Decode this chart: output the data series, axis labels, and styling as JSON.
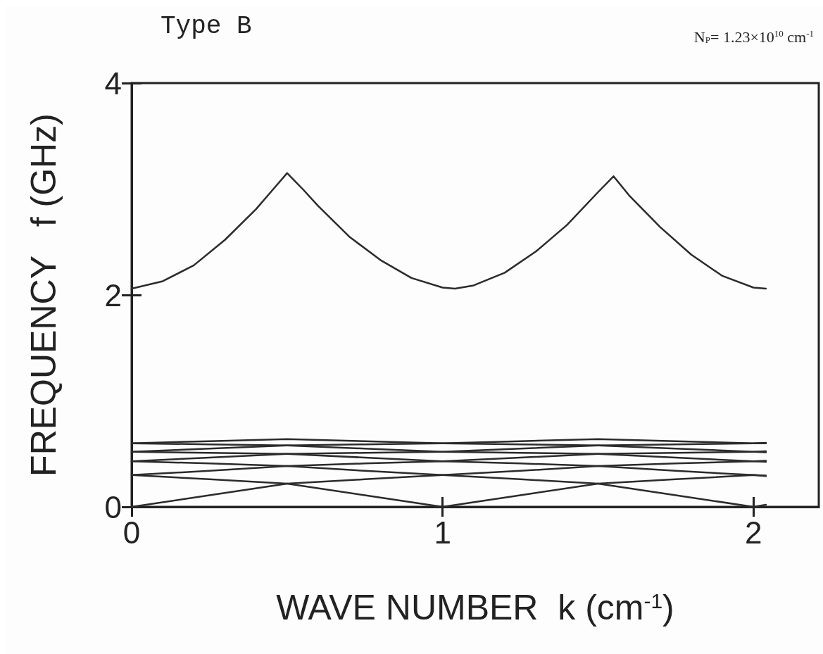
{
  "chart_data": {
    "type": "line",
    "title": "Type B",
    "subtitle": "N$_{P}$= 1.23×10$^{10}$ cm$^{-1}$",
    "xlabel": "WAVE NUMBER  k (cm$^{-1}$)",
    "ylabel": "FREQUENCY   f (GHz)",
    "x": [
      0,
      0.25,
      0.5,
      0.75,
      1,
      1.25,
      1.5,
      1.75,
      2,
      2.04
    ],
    "series": [
      {
        "color": "#2b2b2b",
        "x": [
          0,
          0.1,
          0.2,
          0.3,
          0.4,
          0.45,
          0.5,
          0.55,
          0.6,
          0.7,
          0.8,
          0.9,
          1.0,
          1.04,
          1.1,
          1.2,
          1.3,
          1.4,
          1.5,
          1.55,
          1.6,
          1.7,
          1.8,
          1.9,
          2.0,
          2.04
        ],
        "values": [
          2.06,
          2.13,
          2.28,
          2.52,
          2.81,
          2.98,
          3.15,
          3.0,
          2.84,
          2.55,
          2.33,
          2.16,
          2.07,
          2.06,
          2.09,
          2.21,
          2.41,
          2.66,
          2.97,
          3.12,
          2.94,
          2.64,
          2.38,
          2.18,
          2.07,
          2.06
        ]
      },
      {
        "color": "#2b2b2b",
        "values": [
          0,
          0.11,
          0.22,
          0.26,
          0.3,
          0.34,
          0.385,
          0.41,
          0.43,
          0.435
        ]
      },
      {
        "color": "#2b2b2b",
        "values": [
          0.3,
          0.26,
          0.22,
          0.11,
          0,
          0.11,
          0.22,
          0.26,
          0.3,
          0.29
        ]
      },
      {
        "color": "#2b2b2b",
        "values": [
          0.3,
          0.34,
          0.385,
          0.41,
          0.43,
          0.465,
          0.5,
          0.51,
          0.52,
          0.525
        ]
      },
      {
        "color": "#2b2b2b",
        "values": [
          0.43,
          0.41,
          0.385,
          0.34,
          0.3,
          0.26,
          0.22,
          0.11,
          0,
          0.02
        ]
      },
      {
        "color": "#2b2b2b",
        "values": [
          0.43,
          0.465,
          0.5,
          0.51,
          0.52,
          0.55,
          0.58,
          0.59,
          0.6,
          0.605
        ]
      },
      {
        "color": "#2b2b2b",
        "values": [
          0.52,
          0.51,
          0.5,
          0.465,
          0.43,
          0.41,
          0.385,
          0.34,
          0.3,
          0.295
        ]
      },
      {
        "color": "#2b2b2b",
        "values": [
          0.52,
          0.55,
          0.58,
          0.59,
          0.6,
          0.62,
          0.64,
          0.62,
          0.6,
          0.6
        ]
      },
      {
        "color": "#2b2b2b",
        "values": [
          0.6,
          0.59,
          0.58,
          0.55,
          0.52,
          0.51,
          0.5,
          0.465,
          0.43,
          0.425
        ]
      },
      {
        "color": "#2b2b2b",
        "values": [
          0.6,
          0.62,
          0.64,
          0.62,
          0.6,
          0.59,
          0.58,
          0.55,
          0.52,
          0.515
        ]
      }
    ],
    "xlim": [
      0,
      2.21
    ],
    "ylim": [
      0,
      4
    ],
    "xticks": [
      0,
      1,
      2
    ],
    "yticks": [
      0,
      2,
      4
    ],
    "grid": false,
    "marker": "none",
    "line_style": "solid"
  }
}
